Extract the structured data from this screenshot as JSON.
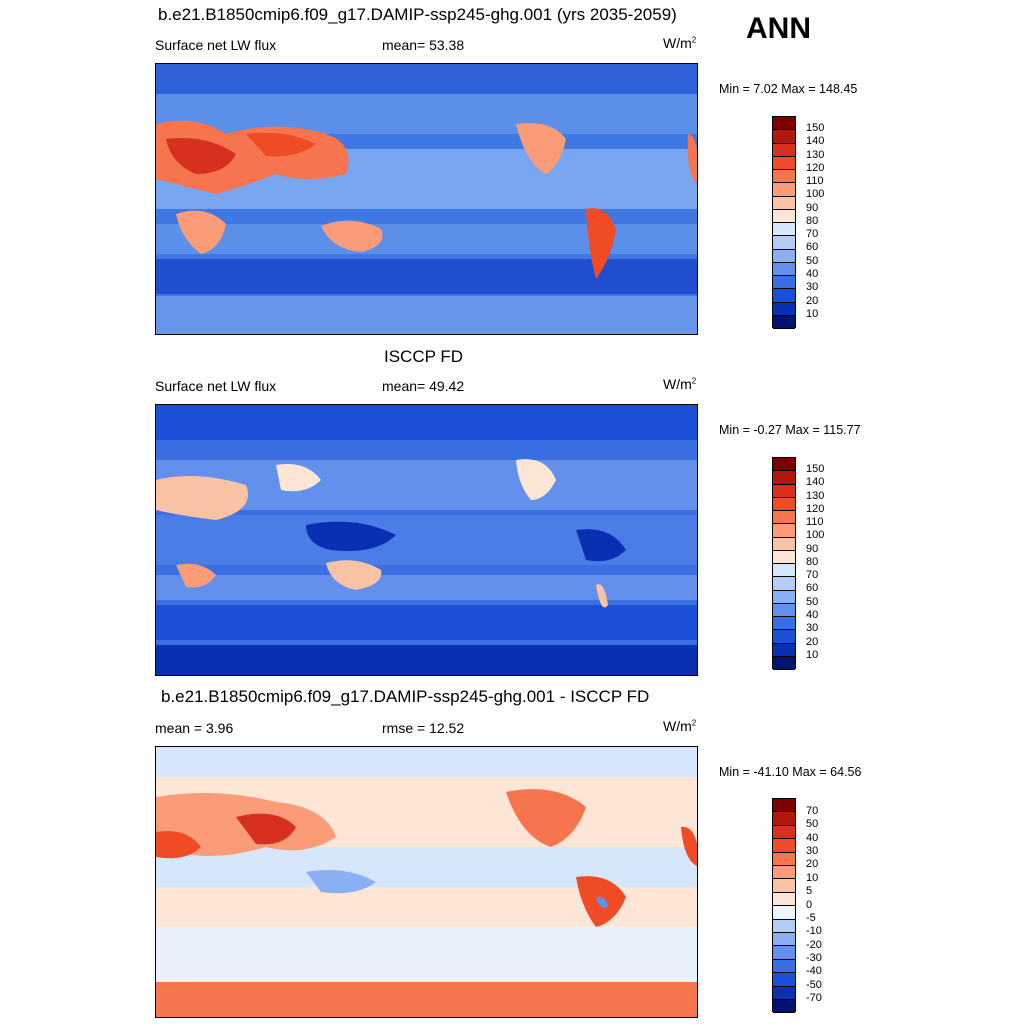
{
  "season": "ANN",
  "panels": [
    {
      "title": "b.e21.B1850cmip6.f09_g17.DAMIP-ssp245-ghg.001 (yrs 2035-2059)",
      "left_label": "Surface net LW flux",
      "center_label": "mean=  53.38",
      "units": "W/m",
      "units_sup": "2",
      "minmax": "Min =   7.02 Max = 148.45",
      "colorbar": {
        "labels": [
          "150",
          "140",
          "130",
          "120",
          "110",
          "100",
          "90",
          "80",
          "70",
          "60",
          "50",
          "40",
          "30",
          "20",
          "10"
        ],
        "colors": [
          "#7f0000",
          "#b2180b",
          "#d7301f",
          "#ef4b25",
          "#f6744e",
          "#f99c77",
          "#fbc3a6",
          "#fde6d6",
          "#d7e7fb",
          "#b3cdf7",
          "#8aaff2",
          "#6290ec",
          "#3a6fe4",
          "#1b4fd6",
          "#0930b3",
          "#00146e"
        ]
      }
    },
    {
      "title": "ISCCP FD",
      "left_label": "Surface net LW flux",
      "center_label": "mean=  49.42",
      "units": "W/m",
      "units_sup": "2",
      "minmax": "Min =  -0.27 Max = 115.77",
      "colorbar": {
        "labels": [
          "150",
          "140",
          "130",
          "120",
          "110",
          "100",
          "90",
          "80",
          "70",
          "60",
          "50",
          "40",
          "30",
          "20",
          "10"
        ],
        "colors": [
          "#7f0000",
          "#b2180b",
          "#d7301f",
          "#ef4b25",
          "#f6744e",
          "#f99c77",
          "#fbc3a6",
          "#fde6d6",
          "#d7e7fb",
          "#b3cdf7",
          "#8aaff2",
          "#6290ec",
          "#3a6fe4",
          "#1b4fd6",
          "#0930b3",
          "#00146e"
        ]
      }
    },
    {
      "title": "b.e21.B1850cmip6.f09_g17.DAMIP-ssp245-ghg.001 - ISCCP FD",
      "left_label": "mean =   3.96",
      "center_label": "rmse =  12.52",
      "units": "W/m",
      "units_sup": "2",
      "minmax": "Min = -41.10 Max =  64.56",
      "colorbar": {
        "labels": [
          "70",
          "50",
          "40",
          "30",
          "20",
          "10",
          "5",
          "0",
          "-5",
          "-10",
          "-20",
          "-30",
          "-40",
          "-50",
          "-70"
        ],
        "colors": [
          "#7f0000",
          "#b2180b",
          "#d7301f",
          "#ef4b25",
          "#f6744e",
          "#f99c77",
          "#fbc3a6",
          "#fde6d6",
          "#eef4fd",
          "#b3cdf7",
          "#8aaff2",
          "#6290ec",
          "#3a6fe4",
          "#1b4fd6",
          "#0930b3",
          "#00146e"
        ]
      }
    }
  ]
}
